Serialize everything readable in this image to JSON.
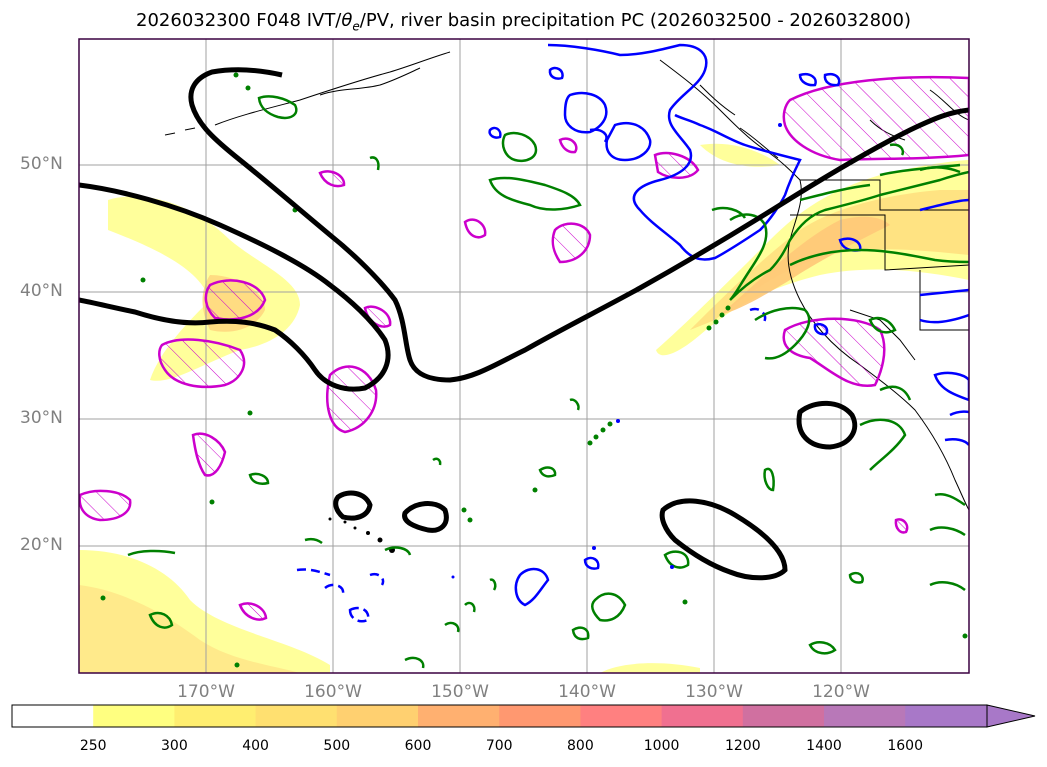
{
  "title": {
    "prefix": "2026032300 F048 IVT/",
    "theta": "θ",
    "theta_sub": "e",
    "suffix": "/PV, river basin precipitation PC (2026032500 - 2026032800)"
  },
  "map": {
    "lon_range": [
      -180,
      -110
    ],
    "lat_range": [
      10,
      60
    ],
    "gridlines": true,
    "lat_ticks": [
      {
        "value": 50,
        "label": "50°N"
      },
      {
        "value": 40,
        "label": "40°N"
      },
      {
        "value": 30,
        "label": "30°N"
      },
      {
        "value": 20,
        "label": "20°N"
      }
    ],
    "lon_ticks": [
      {
        "value": -170,
        "label": "170°W"
      },
      {
        "value": -160,
        "label": "160°W"
      },
      {
        "value": -150,
        "label": "150°W"
      },
      {
        "value": -140,
        "label": "140°W"
      },
      {
        "value": -130,
        "label": "130°W"
      },
      {
        "value": -120,
        "label": "120°W"
      }
    ],
    "colors": {
      "ivt_contour": "#000000",
      "pv_contour": "#0000ff",
      "theta_contour": "#008000",
      "precip_contour": "#cc00cc",
      "coastline": "#000000",
      "frame": "#4b0082"
    }
  },
  "colorbar": {
    "levels": [
      "250",
      "300",
      "400",
      "500",
      "600",
      "700",
      "800",
      "1000",
      "1200",
      "1400",
      "1600"
    ],
    "colors": [
      "#ffffff",
      "#ffff80",
      "#ffee70",
      "#ffe070",
      "#ffd070",
      "#ffb070",
      "#ff9870",
      "#ff8080",
      "#f07090",
      "#d070a0",
      "#b878b8",
      "#a878c8"
    ],
    "extend": "max"
  }
}
